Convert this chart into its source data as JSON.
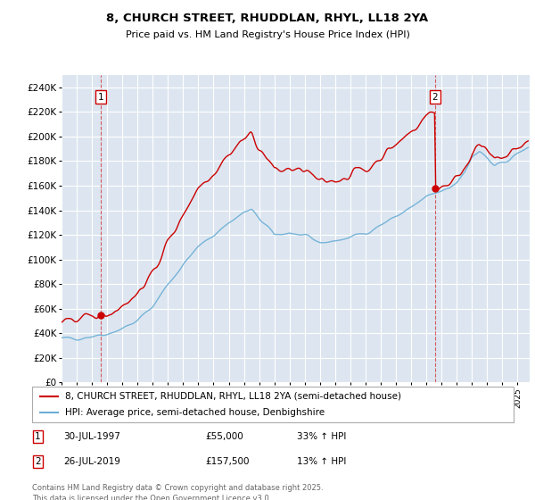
{
  "title": "8, CHURCH STREET, RHUDDLAN, RHYL, LL18 2YA",
  "subtitle": "Price paid vs. HM Land Registry's House Price Index (HPI)",
  "legend_line1": "8, CHURCH STREET, RHUDDLAN, RHYL, LL18 2YA (semi-detached house)",
  "legend_line2": "HPI: Average price, semi-detached house, Denbighshire",
  "footnote": "Contains HM Land Registry data © Crown copyright and database right 2025.\nThis data is licensed under the Open Government Licence v3.0.",
  "purchase1_date": "30-JUL-1997",
  "purchase1_price": "£55,000",
  "purchase1_hpi": "33% ↑ HPI",
  "purchase1_year": 1997.58,
  "purchase1_value": 55000,
  "purchase2_date": "26-JUL-2019",
  "purchase2_price": "£157,500",
  "purchase2_hpi": "13% ↑ HPI",
  "purchase2_year": 2019.58,
  "purchase2_value": 157500,
  "hpi_color": "#6baed6",
  "price_color": "#cc0000",
  "bg_color": "#dde6f0",
  "grid_color": "#ffffff",
  "ylim": [
    0,
    250000
  ],
  "yticks": [
    0,
    20000,
    40000,
    60000,
    80000,
    100000,
    120000,
    140000,
    160000,
    180000,
    200000,
    220000,
    240000
  ],
  "xlim_start": 1995.0,
  "xlim_end": 2025.8
}
